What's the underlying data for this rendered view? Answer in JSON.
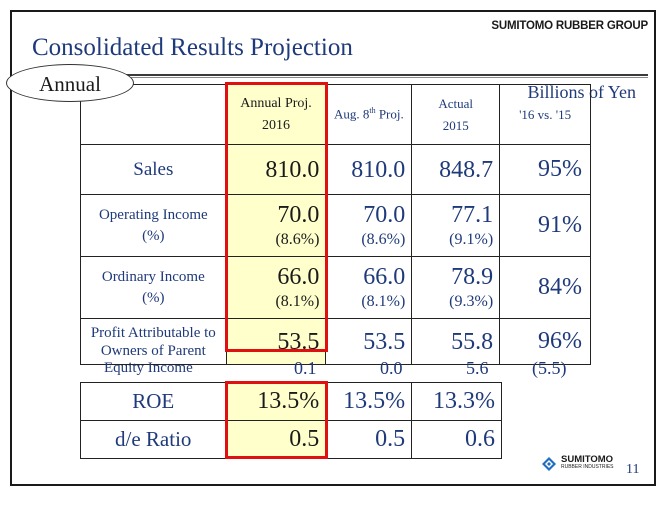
{
  "header": {
    "title": "Consolidated Results Projection",
    "brand": "SUMITOMO RUBBER GROUP",
    "units": "Billions of Yen",
    "badge": "Annual"
  },
  "table": {
    "columns": [
      {
        "line1": "Annual Proj.",
        "line2": "2016"
      },
      {
        "pre": "Aug. 8",
        "sup": "th",
        "post": " Proj."
      },
      {
        "line1": "Actual",
        "line2": "2015"
      },
      {
        "line1": "'16 vs. '15"
      }
    ],
    "rows": [
      {
        "label": "Sales",
        "values": [
          "810.0",
          "810.0",
          "848.7"
        ],
        "compare": "95%"
      },
      {
        "label1": "Operating Income",
        "label2": "(%)",
        "values": [
          "70.0",
          "70.0",
          "77.1"
        ],
        "percents": [
          "(8.6%)",
          "(8.6%)",
          "(9.1%)"
        ],
        "compare": "91%"
      },
      {
        "label1": "Ordinary Income",
        "label2": "(%)",
        "values": [
          "66.0",
          "66.0",
          "78.9"
        ],
        "percents": [
          "(8.1%)",
          "(8.1%)",
          "(9.3%)"
        ],
        "compare": "84%"
      },
      {
        "label1": "Profit Attributable to",
        "label2": "Owners of Parent",
        "values": [
          "53.5",
          "53.5",
          "55.8"
        ],
        "compare": "96%"
      }
    ],
    "equity": {
      "label": "Equity Income",
      "values": [
        "0.1",
        "0.0",
        "5.6"
      ],
      "compare": "(5.5)"
    }
  },
  "ratios": [
    {
      "label": "ROE",
      "values": [
        "13.5%",
        "13.5%",
        "13.3%"
      ]
    },
    {
      "label": "d/e Ratio",
      "values": [
        "0.5",
        "0.5",
        "0.6"
      ]
    }
  ],
  "footer": {
    "logo_name": "SUMITOMO",
    "logo_sub": "RUBBER INDUSTRIES",
    "page": "11"
  },
  "colors": {
    "highlight_border": "#e01010",
    "highlight_fill": "#ffffcc",
    "text": "#1f3a7a"
  }
}
